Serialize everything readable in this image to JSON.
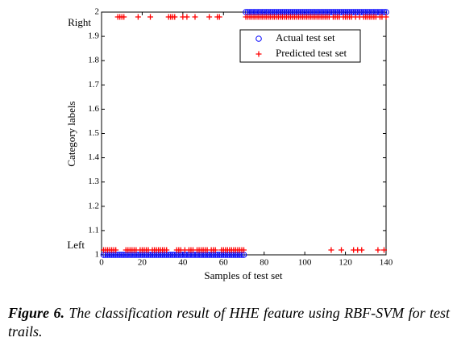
{
  "chart_data": {
    "type": "scatter",
    "ylabel": "Category labels",
    "xlabel": "Samples of test set",
    "annotations": [
      "Right",
      "Left"
    ],
    "x": [
      1,
      2,
      3,
      4,
      5,
      6,
      7,
      8,
      9,
      10,
      11,
      12,
      13,
      14,
      15,
      16,
      17,
      18,
      19,
      20,
      21,
      22,
      23,
      24,
      25,
      26,
      27,
      28,
      29,
      30,
      31,
      32,
      33,
      34,
      35,
      36,
      37,
      38,
      39,
      40,
      41,
      42,
      43,
      44,
      45,
      46,
      47,
      48,
      49,
      50,
      51,
      52,
      53,
      54,
      55,
      56,
      57,
      58,
      59,
      60,
      61,
      62,
      63,
      64,
      65,
      66,
      67,
      68,
      69,
      70,
      71,
      72,
      73,
      74,
      75,
      76,
      77,
      78,
      79,
      80,
      81,
      82,
      83,
      84,
      85,
      86,
      87,
      88,
      89,
      90,
      91,
      92,
      93,
      94,
      95,
      96,
      97,
      98,
      99,
      100,
      101,
      102,
      103,
      104,
      105,
      106,
      107,
      108,
      109,
      110,
      111,
      112,
      113,
      114,
      115,
      116,
      117,
      118,
      119,
      120,
      121,
      122,
      123,
      124,
      125,
      126,
      127,
      128,
      129,
      130,
      131,
      132,
      133,
      134,
      135,
      136,
      137,
      138,
      139,
      140
    ],
    "series": [
      {
        "name": "Actual test set",
        "color": "#0000ff",
        "marker": "circle",
        "values": [
          1,
          1,
          1,
          1,
          1,
          1,
          1,
          1,
          1,
          1,
          1,
          1,
          1,
          1,
          1,
          1,
          1,
          1,
          1,
          1,
          1,
          1,
          1,
          1,
          1,
          1,
          1,
          1,
          1,
          1,
          1,
          1,
          1,
          1,
          1,
          1,
          1,
          1,
          1,
          1,
          1,
          1,
          1,
          1,
          1,
          1,
          1,
          1,
          1,
          1,
          1,
          1,
          1,
          1,
          1,
          1,
          1,
          1,
          1,
          1,
          1,
          1,
          1,
          1,
          1,
          1,
          1,
          1,
          1,
          1,
          2,
          2,
          2,
          2,
          2,
          2,
          2,
          2,
          2,
          2,
          2,
          2,
          2,
          2,
          2,
          2,
          2,
          2,
          2,
          2,
          2,
          2,
          2,
          2,
          2,
          2,
          2,
          2,
          2,
          2,
          2,
          2,
          2,
          2,
          2,
          2,
          2,
          2,
          2,
          2,
          2,
          2,
          2,
          2,
          2,
          2,
          2,
          2,
          2,
          2,
          2,
          2,
          2,
          2,
          2,
          2,
          2,
          2,
          2,
          2,
          2,
          2,
          2,
          2,
          2,
          2,
          2,
          2,
          2,
          2
        ]
      },
      {
        "name": "Predicted test set",
        "color": "#ff0000",
        "marker": "plus",
        "values": [
          1.02,
          1.02,
          1.02,
          1.02,
          1.02,
          1.02,
          1.02,
          1.98,
          1.98,
          1.98,
          1.98,
          1.02,
          1.02,
          1.02,
          1.02,
          1.02,
          1.02,
          1.98,
          1.02,
          1.02,
          1.02,
          1.02,
          1.02,
          1.98,
          1.02,
          1.02,
          1.02,
          1.02,
          1.02,
          1.02,
          1.02,
          1.02,
          1.98,
          1.98,
          1.98,
          1.98,
          1.02,
          1.02,
          1.02,
          1.98,
          1.02,
          1.98,
          1.02,
          1.02,
          1.02,
          1.98,
          1.02,
          1.02,
          1.02,
          1.02,
          1.02,
          1.02,
          1.98,
          1.02,
          1.02,
          1.02,
          1.98,
          1.98,
          1.02,
          1.02,
          1.02,
          1.02,
          1.02,
          1.02,
          1.02,
          1.02,
          1.02,
          1.02,
          1.02,
          1.02,
          1.98,
          1.98,
          1.98,
          1.98,
          1.98,
          1.98,
          1.98,
          1.98,
          1.98,
          1.98,
          1.98,
          1.98,
          1.98,
          1.98,
          1.98,
          1.98,
          1.98,
          1.98,
          1.98,
          1.98,
          1.98,
          1.98,
          1.98,
          1.98,
          1.98,
          1.98,
          1.98,
          1.98,
          1.98,
          1.98,
          1.98,
          1.98,
          1.98,
          1.98,
          1.98,
          1.98,
          1.98,
          1.98,
          1.98,
          1.98,
          1.98,
          1.98,
          1.02,
          1.98,
          1.98,
          1.98,
          1.98,
          1.02,
          1.98,
          1.98,
          1.98,
          1.98,
          1.98,
          1.02,
          1.98,
          1.02,
          1.98,
          1.02,
          1.98,
          1.98,
          1.98,
          1.98,
          1.98,
          1.98,
          1.98,
          1.02,
          1.98,
          1.98,
          1.02,
          1.98
        ]
      }
    ],
    "xlim": [
      0,
      140
    ],
    "xticks": [
      0,
      20,
      40,
      60,
      80,
      100,
      120,
      140
    ],
    "ylim": [
      1,
      2
    ],
    "yticks": [
      1,
      1.1,
      1.2,
      1.3,
      1.4,
      1.5,
      1.6,
      1.7,
      1.8,
      1.9,
      2
    ],
    "legend": "upper-right"
  },
  "caption": {
    "label": "Figure 6.",
    "text": "The classification result of HHE feature using RBF-SVM for test trails."
  }
}
